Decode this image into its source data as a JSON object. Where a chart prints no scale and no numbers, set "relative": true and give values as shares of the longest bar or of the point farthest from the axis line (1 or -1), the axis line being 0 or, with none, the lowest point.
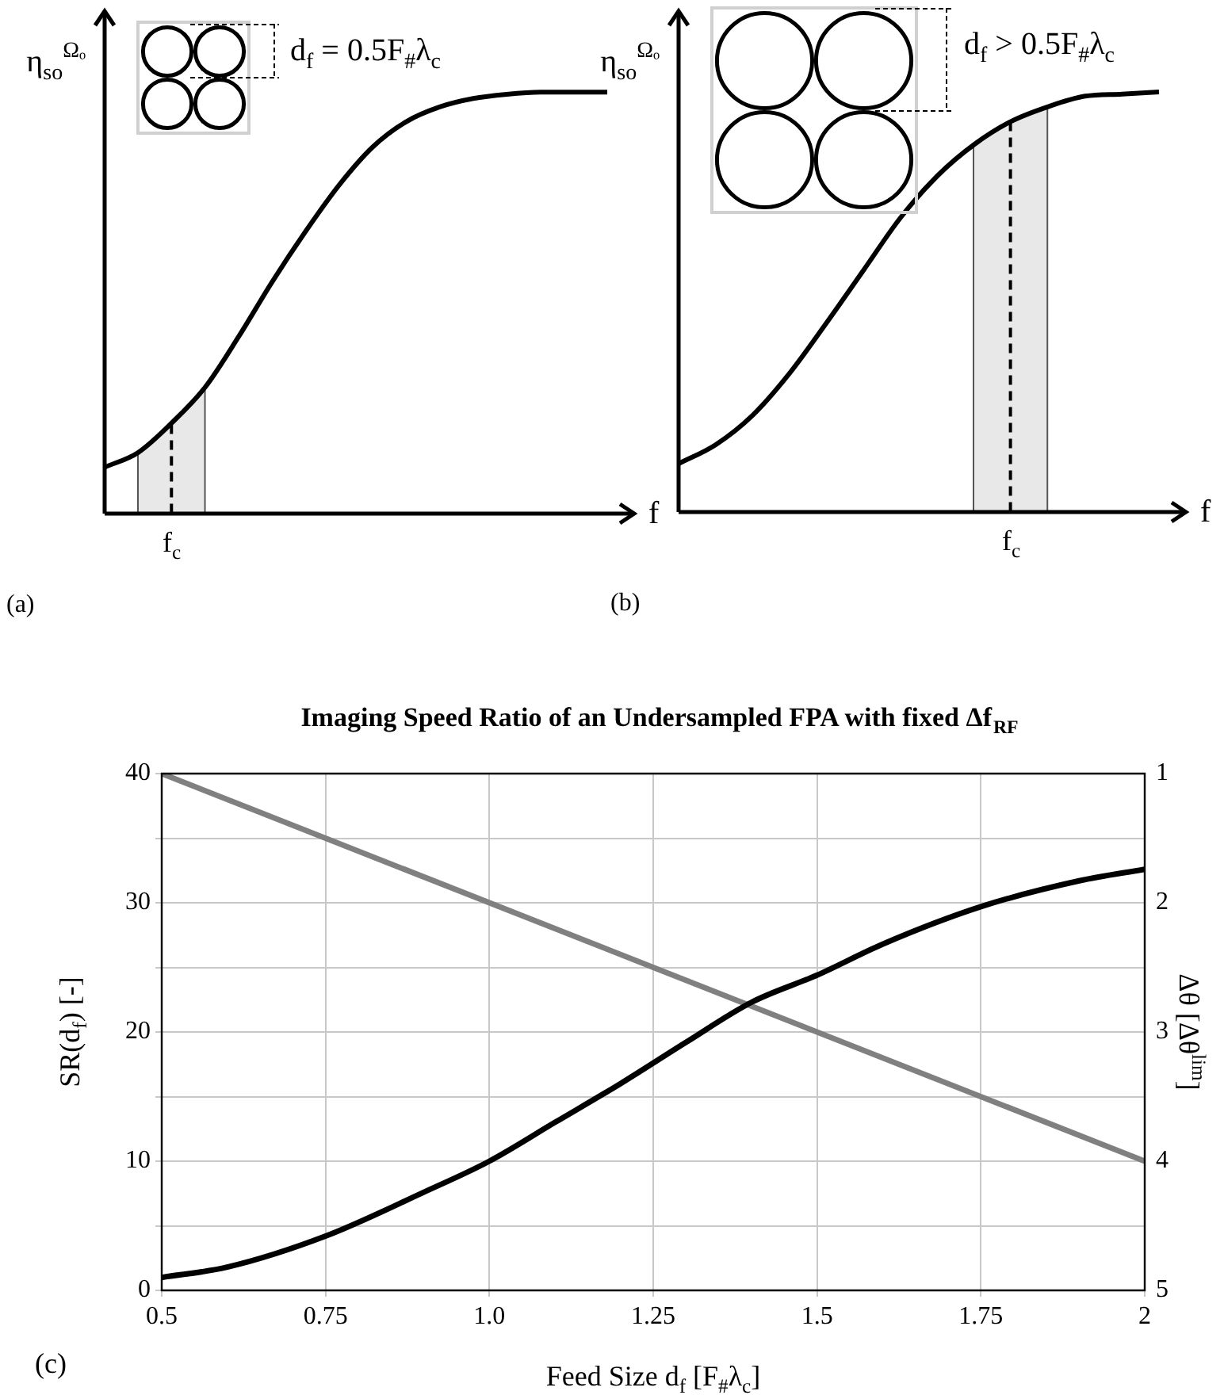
{
  "chart_data": [
    {
      "type": "line",
      "relative": true,
      "xlabel": "f",
      "ylabel": "η$_{so}$$^{Ωₒ}$",
      "marker": "none",
      "line_style": "solid",
      "legend": false,
      "grid": false,
      "categories": [
        null,
        null,
        null,
        null,
        null,
        null,
        null,
        null,
        null,
        null,
        null,
        null,
        null,
        null,
        null,
        null
      ],
      "values": [
        0.11,
        0.145,
        0.215,
        0.3,
        0.42,
        0.55,
        0.67,
        0.78,
        0.87,
        0.93,
        0.965,
        0.985,
        0.995,
        1,
        1,
        1
      ],
      "color": "#000000",
      "annotations": [
        "d$_{f}$ = 0.5F$_{#}$λ$_{c}$",
        "(a)",
        "f$_{c}$"
      ]
    },
    {
      "type": "line",
      "relative": true,
      "xlabel": "f",
      "ylabel": "η$_{so}$$^{Ωₒ}$",
      "marker": "none",
      "line_style": "solid",
      "legend": false,
      "grid": false,
      "categories": [
        null,
        null,
        null,
        null,
        null,
        null,
        null,
        null,
        null,
        null,
        null,
        null,
        null,
        null
      ],
      "values": [
        0.115,
        0.16,
        0.23,
        0.33,
        0.45,
        0.575,
        0.7,
        0.8,
        0.875,
        0.93,
        0.965,
        0.99,
        0.995,
        1
      ],
      "color": "#000000",
      "annotations": [
        "d$_{f}$ > 0.5F$_{#}$λ$_{c}$",
        "(b)",
        "f$_{c}$"
      ]
    },
    {
      "type": "line",
      "title": "Imaging Speed Ratio of an Undersampled FPA with fixed Δf$_{RF}$",
      "xlabel": "Feed Size d$_{f}$ [F$_{#}$λ$_{c}$]",
      "ylabel": "SR(d$_{f}$) [-]",
      "y2label": "Δθ [Δθ$^{lim}$]",
      "xlim": [
        0.5,
        2
      ],
      "xticks": [
        0.5,
        0.75,
        {
          "value": 1,
          "label": "1.0"
        },
        1.25,
        1.5,
        1.75,
        2
      ],
      "ylim": [
        0,
        40
      ],
      "yticks": [
        0,
        {
          "value": 5,
          "label": null
        },
        10,
        {
          "value": 15,
          "label": null
        },
        20,
        {
          "value": 25,
          "label": null
        },
        30,
        {
          "value": 35,
          "label": null
        },
        40
      ],
      "y2lim": [
        5,
        1
      ],
      "y2ticks": [
        1,
        2,
        3,
        4,
        5
      ],
      "grid": true,
      "legend": false,
      "marker": "none",
      "line_style": "solid",
      "series": [
        {
          "color": "#000000",
          "x": [
            0.5,
            0.6,
            0.75,
            0.9,
            1.0,
            1.1,
            1.2,
            1.3,
            1.4,
            1.5,
            1.6,
            1.75,
            1.9,
            2
          ],
          "values": [
            1,
            1.8,
            4.2,
            7.6,
            10,
            13,
            16,
            19.2,
            22.3,
            24.4,
            26.8,
            29.7,
            31.7,
            32.6
          ]
        },
        {
          "color": "#808080",
          "axis": "y2",
          "x": [
            0.5,
            2
          ],
          "values": [
            1,
            4
          ]
        }
      ],
      "annotations": [
        "(c)"
      ]
    }
  ]
}
